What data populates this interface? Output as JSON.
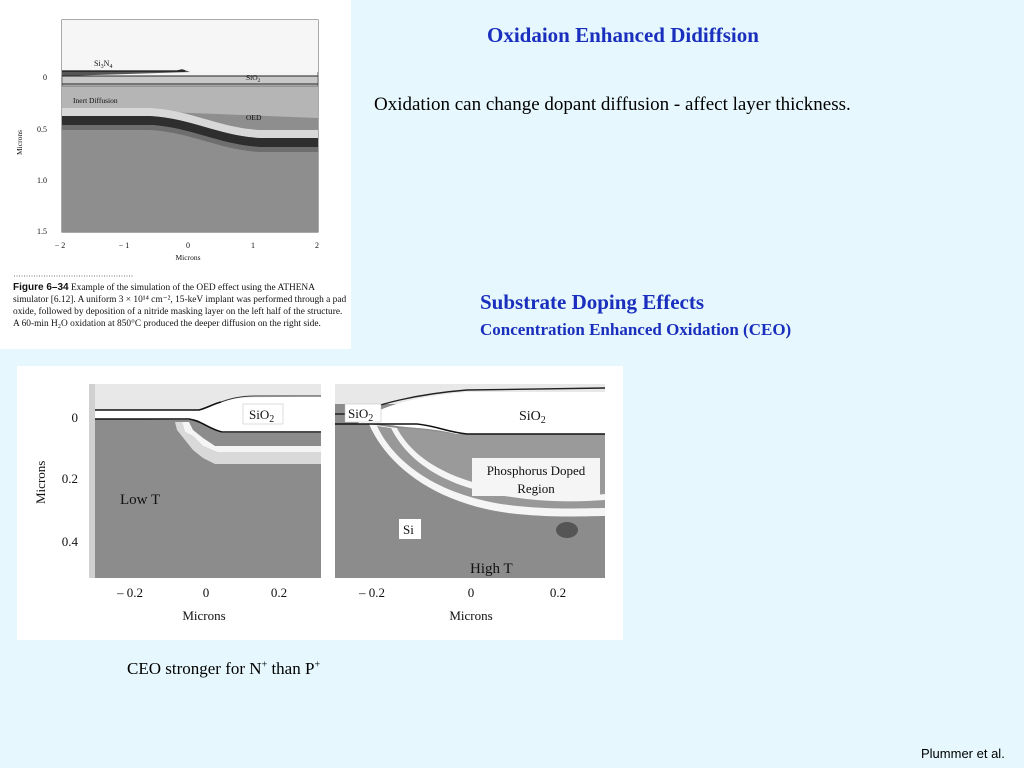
{
  "slide": {
    "title": "Oxidaion Enhanced Didiffsion",
    "intro": "Oxidation can change dopant diffusion - affect layer thickness.",
    "section_title": "Substrate Doping Effects",
    "section_subtitle": "Concentration Enhanced Oxidation (CEO)",
    "ceo_note_prefix": "CEO stronger for N",
    "ceo_note_sup1": "+",
    "ceo_note_middle": " than P",
    "ceo_note_sup2": "+",
    "credit": "Plummer et al."
  },
  "figure1": {
    "labels": {
      "si3n4": "Si",
      "si3n4_sub1": "3",
      "si3n4_mid": "N",
      "si3n4_sub2": "4",
      "sio2": "SiO",
      "sio2_sub": "2",
      "inert": "Inert Diffusion",
      "oed": "OED"
    },
    "y_ticks": [
      "0",
      "0.5",
      "1.0",
      "1.5"
    ],
    "x_ticks": [
      "− 2",
      "− 1",
      "0",
      "1",
      "2"
    ],
    "y_label": "Microns",
    "x_label": "Microns",
    "caption_label": "Figure 6–34",
    "caption_text": "Example of the simulation of the OED effect using the ATHENA simulator [6.12]. A uniform 3 × 10¹⁴ cm⁻², 15-keV implant was performed through a pad oxide, followed by deposition of a nitride masking layer on the left half of the structure. A 60-min H₂O oxidation at 850°C produced the deeper diffusion on the right side."
  },
  "figure2": {
    "y_ticks": [
      "0",
      "0.2",
      "0.4"
    ],
    "x_ticks_left": [
      "– 0.2",
      "0",
      "0.2"
    ],
    "x_ticks_right": [
      "– 0.2",
      "0",
      "0.2"
    ],
    "y_label": "Microns",
    "x_label_left": "Microns",
    "x_label_right": "Microns",
    "sio2_left": "SiO",
    "sio2_left_sub": "2",
    "sio2_right_a": "SiO",
    "sio2_right_a_sub": "2",
    "sio2_right_b": "SiO",
    "sio2_right_b_sub": "2",
    "phos_line1": "Phosphorus Doped",
    "phos_line2": "Region",
    "si_label": "Si",
    "low_t": "Low T",
    "high_t": "High T"
  }
}
